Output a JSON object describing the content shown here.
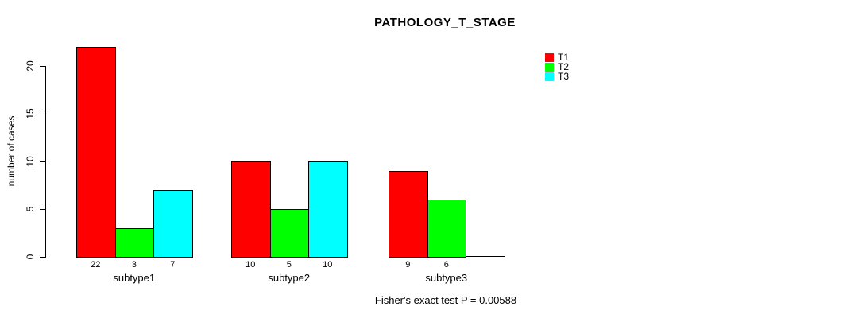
{
  "chart_data": {
    "type": "bar",
    "title": "PATHOLOGY_T_STAGE",
    "xlabel": "",
    "ylabel": "number of cases",
    "categories": [
      "subtype1",
      "subtype2",
      "subtype3"
    ],
    "series": [
      {
        "name": "T1",
        "color": "#ff0000",
        "values": [
          22,
          10,
          9
        ]
      },
      {
        "name": "T2",
        "color": "#00ff00",
        "values": [
          3,
          5,
          6
        ]
      },
      {
        "name": "T3",
        "color": "#00ffff",
        "values": [
          7,
          10,
          0
        ]
      }
    ],
    "bar_value_labels": [
      [
        "22",
        "3",
        "7"
      ],
      [
        "10",
        "5",
        "10"
      ],
      [
        "9",
        "6",
        ""
      ]
    ],
    "yticks": [
      0,
      5,
      10,
      15,
      20
    ],
    "ylim": [
      0,
      22
    ],
    "grid": false,
    "legend_position": "right",
    "annotation": "Fisher's exact test P = 0.00588"
  }
}
